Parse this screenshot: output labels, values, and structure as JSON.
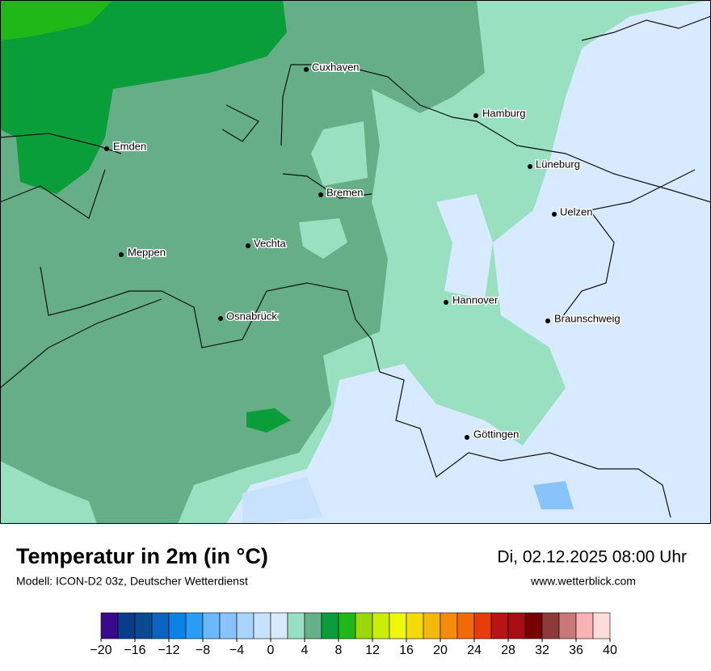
{
  "header": {
    "title": "Temperatur in 2m (in °C)",
    "subtitle": "Modell: ICON-D2 03z, Deutscher Wetterdienst",
    "datetime": "Di, 02.12.2025 08:00 Uhr",
    "website": "www.wetterblick.com"
  },
  "map": {
    "cities": [
      "Cuxhaven",
      "Hamburg",
      "Emden",
      "Lüneburg",
      "Bremen",
      "Uelzen",
      "Vechta",
      "Meppen",
      "Hannover",
      "Osnabrück",
      "Braunschweig",
      "Göttingen"
    ]
  },
  "colorbar": {
    "range": [
      -20,
      40
    ],
    "colors": [
      "#3a0a8c",
      "#0a3c8c",
      "#0a4a90",
      "#0a64c0",
      "#0a82e6",
      "#2a9cf5",
      "#6ab8f8",
      "#88c4fa",
      "#a8d4fc",
      "#c8e2fd",
      "#d8eaff",
      "#98e0c0",
      "#64b088",
      "#0a9e3a",
      "#20b818",
      "#9ad80a",
      "#ccec0a",
      "#f0f80a",
      "#f4dc0a",
      "#f4b80a",
      "#f48c0a",
      "#f06a0a",
      "#e83c0a",
      "#b81414",
      "#a80e14",
      "#780000",
      "#8c3a3a",
      "#c87878",
      "#f8b4b4",
      "#ffdcdc"
    ],
    "ticks": [
      {
        "value": -20,
        "label": "−20"
      },
      {
        "value": -16,
        "label": "−16"
      },
      {
        "value": -12,
        "label": "−12"
      },
      {
        "value": -8,
        "label": "−8"
      },
      {
        "value": -4,
        "label": "−4"
      },
      0,
      4,
      8,
      12,
      16,
      20,
      24,
      28,
      32,
      36,
      40
    ]
  }
}
